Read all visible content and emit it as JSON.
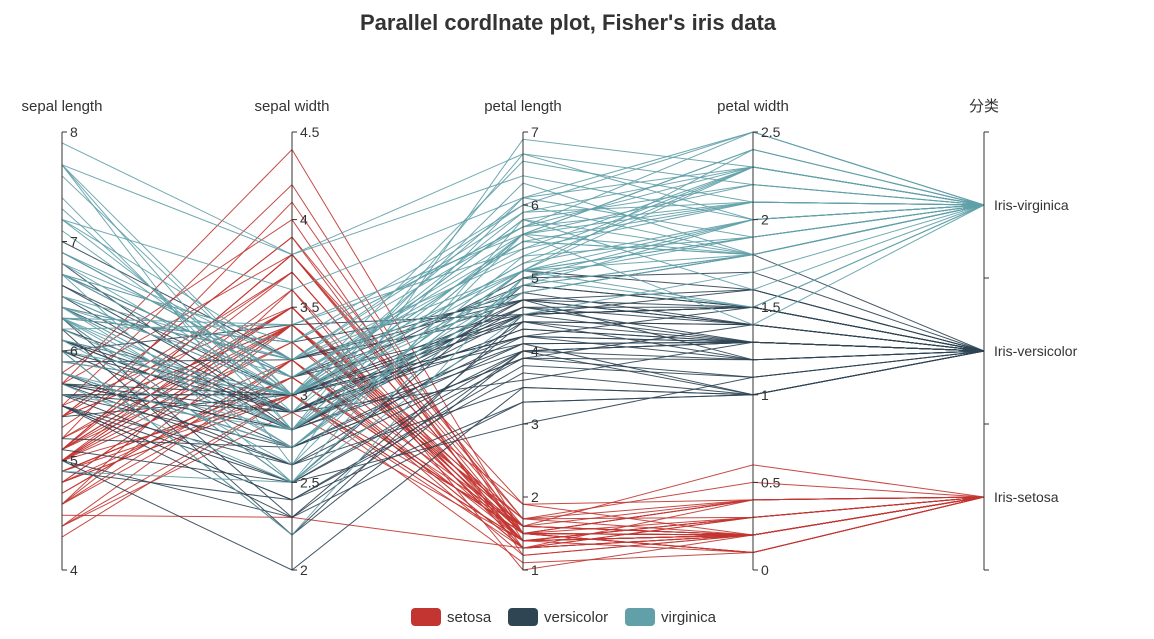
{
  "chart_data": {
    "type": "parallel",
    "title": "Parallel cordlnate plot, Fisher's iris data",
    "axes": [
      {
        "name": "sepal length",
        "type": "value",
        "min": 4,
        "max": 8,
        "ticks": [
          "4",
          "5",
          "6",
          "7",
          "8"
        ]
      },
      {
        "name": "sepal width",
        "type": "value",
        "min": 2,
        "max": 4.5,
        "ticks": [
          "2",
          "2.5",
          "3",
          "3.5",
          "4",
          "4.5"
        ]
      },
      {
        "name": "petal length",
        "type": "value",
        "min": 1,
        "max": 7,
        "ticks": [
          "1",
          "2",
          "3",
          "4",
          "5",
          "6",
          "7"
        ]
      },
      {
        "name": "petal width",
        "type": "value",
        "min": 0,
        "max": 2.5,
        "ticks": [
          "0",
          "0.5",
          "1",
          "1.5",
          "2",
          "2.5"
        ]
      },
      {
        "name": "分类",
        "type": "category",
        "categories": [
          "Iris-setosa",
          "Iris-versicolor",
          "Iris-virginica"
        ]
      }
    ],
    "legend": {
      "position": "bottom-center"
    },
    "colors": {
      "setosa": "#c23531",
      "versicolor": "#2f4554",
      "virginica": "#61a0a8"
    },
    "series": [
      {
        "name": "setosa",
        "category": "Iris-setosa",
        "data": [
          [
            5.1,
            3.5,
            1.4,
            0.2
          ],
          [
            4.9,
            3.0,
            1.4,
            0.2
          ],
          [
            4.7,
            3.2,
            1.3,
            0.2
          ],
          [
            4.6,
            3.1,
            1.5,
            0.2
          ],
          [
            5.0,
            3.6,
            1.4,
            0.2
          ],
          [
            5.4,
            3.9,
            1.7,
            0.4
          ],
          [
            4.6,
            3.4,
            1.4,
            0.3
          ],
          [
            5.0,
            3.4,
            1.5,
            0.2
          ],
          [
            4.4,
            2.9,
            1.4,
            0.2
          ],
          [
            4.9,
            3.1,
            1.5,
            0.1
          ],
          [
            5.4,
            3.7,
            1.5,
            0.2
          ],
          [
            4.8,
            3.4,
            1.6,
            0.2
          ],
          [
            4.8,
            3.0,
            1.4,
            0.1
          ],
          [
            4.3,
            3.0,
            1.1,
            0.1
          ],
          [
            5.8,
            4.0,
            1.2,
            0.2
          ],
          [
            5.7,
            4.4,
            1.5,
            0.4
          ],
          [
            5.4,
            3.9,
            1.3,
            0.4
          ],
          [
            5.1,
            3.5,
            1.4,
            0.3
          ],
          [
            5.7,
            3.8,
            1.7,
            0.3
          ],
          [
            5.1,
            3.8,
            1.5,
            0.3
          ],
          [
            5.4,
            3.4,
            1.7,
            0.2
          ],
          [
            5.1,
            3.7,
            1.5,
            0.4
          ],
          [
            4.6,
            3.6,
            1.0,
            0.2
          ],
          [
            5.1,
            3.3,
            1.7,
            0.5
          ],
          [
            4.8,
            3.4,
            1.9,
            0.2
          ],
          [
            5.0,
            3.0,
            1.6,
            0.2
          ],
          [
            5.0,
            3.4,
            1.6,
            0.4
          ],
          [
            5.2,
            3.5,
            1.5,
            0.2
          ],
          [
            5.2,
            3.4,
            1.4,
            0.2
          ],
          [
            4.7,
            3.2,
            1.6,
            0.2
          ],
          [
            4.8,
            3.1,
            1.6,
            0.2
          ],
          [
            5.4,
            3.4,
            1.5,
            0.4
          ],
          [
            5.2,
            4.1,
            1.5,
            0.1
          ],
          [
            5.5,
            4.2,
            1.4,
            0.2
          ],
          [
            4.9,
            3.1,
            1.5,
            0.1
          ],
          [
            5.0,
            3.2,
            1.2,
            0.2
          ],
          [
            5.5,
            3.5,
            1.3,
            0.2
          ],
          [
            4.9,
            3.1,
            1.5,
            0.1
          ],
          [
            4.4,
            3.0,
            1.3,
            0.2
          ],
          [
            5.1,
            3.4,
            1.5,
            0.2
          ],
          [
            5.0,
            3.5,
            1.3,
            0.3
          ],
          [
            4.5,
            2.3,
            1.3,
            0.3
          ],
          [
            4.4,
            3.2,
            1.3,
            0.2
          ],
          [
            5.0,
            3.5,
            1.6,
            0.6
          ],
          [
            5.1,
            3.8,
            1.9,
            0.4
          ],
          [
            4.8,
            3.0,
            1.4,
            0.3
          ],
          [
            5.1,
            3.8,
            1.6,
            0.2
          ],
          [
            4.6,
            3.2,
            1.4,
            0.2
          ],
          [
            5.3,
            3.7,
            1.5,
            0.2
          ],
          [
            5.0,
            3.3,
            1.4,
            0.2
          ]
        ]
      },
      {
        "name": "versicolor",
        "category": "Iris-versicolor",
        "data": [
          [
            7.0,
            3.2,
            4.7,
            1.4
          ],
          [
            6.4,
            3.2,
            4.5,
            1.5
          ],
          [
            6.9,
            3.1,
            4.9,
            1.5
          ],
          [
            5.5,
            2.3,
            4.0,
            1.3
          ],
          [
            6.5,
            2.8,
            4.6,
            1.5
          ],
          [
            5.7,
            2.8,
            4.5,
            1.3
          ],
          [
            6.3,
            3.3,
            4.7,
            1.6
          ],
          [
            4.9,
            2.4,
            3.3,
            1.0
          ],
          [
            6.6,
            2.9,
            4.6,
            1.3
          ],
          [
            5.2,
            2.7,
            3.9,
            1.4
          ],
          [
            5.0,
            2.0,
            3.5,
            1.0
          ],
          [
            5.9,
            3.0,
            4.2,
            1.5
          ],
          [
            6.0,
            2.2,
            4.0,
            1.0
          ],
          [
            6.1,
            2.9,
            4.7,
            1.4
          ],
          [
            5.6,
            2.9,
            3.6,
            1.3
          ],
          [
            6.7,
            3.1,
            4.4,
            1.4
          ],
          [
            5.6,
            3.0,
            4.5,
            1.5
          ],
          [
            5.8,
            2.7,
            4.1,
            1.0
          ],
          [
            6.2,
            2.2,
            4.5,
            1.5
          ],
          [
            5.6,
            2.5,
            3.9,
            1.1
          ],
          [
            5.9,
            3.2,
            4.8,
            1.8
          ],
          [
            6.1,
            2.8,
            4.0,
            1.3
          ],
          [
            6.3,
            2.5,
            4.9,
            1.5
          ],
          [
            6.1,
            2.8,
            4.7,
            1.2
          ],
          [
            6.4,
            2.9,
            4.3,
            1.3
          ],
          [
            6.6,
            3.0,
            4.4,
            1.4
          ],
          [
            6.8,
            2.8,
            4.8,
            1.4
          ],
          [
            6.7,
            3.0,
            5.0,
            1.7
          ],
          [
            6.0,
            2.9,
            4.5,
            1.5
          ],
          [
            5.7,
            2.6,
            3.5,
            1.0
          ],
          [
            5.5,
            2.4,
            3.8,
            1.1
          ],
          [
            5.5,
            2.4,
            3.7,
            1.0
          ],
          [
            5.8,
            2.7,
            3.9,
            1.2
          ],
          [
            6.0,
            2.7,
            5.1,
            1.6
          ],
          [
            5.4,
            3.0,
            4.5,
            1.5
          ],
          [
            6.0,
            3.4,
            4.5,
            1.6
          ],
          [
            6.7,
            3.1,
            4.7,
            1.5
          ],
          [
            6.3,
            2.3,
            4.4,
            1.3
          ],
          [
            5.6,
            3.0,
            4.1,
            1.3
          ],
          [
            5.5,
            2.5,
            4.0,
            1.3
          ],
          [
            5.5,
            2.6,
            4.4,
            1.2
          ],
          [
            6.1,
            3.0,
            4.6,
            1.4
          ],
          [
            5.8,
            2.6,
            4.0,
            1.2
          ],
          [
            5.0,
            2.3,
            3.3,
            1.0
          ],
          [
            5.6,
            2.7,
            4.2,
            1.3
          ],
          [
            5.7,
            3.0,
            4.2,
            1.2
          ],
          [
            5.7,
            2.9,
            4.2,
            1.3
          ],
          [
            6.2,
            2.9,
            4.3,
            1.3
          ],
          [
            5.1,
            2.5,
            3.0,
            1.1
          ],
          [
            5.7,
            2.8,
            4.1,
            1.3
          ]
        ]
      },
      {
        "name": "virginica",
        "category": "Iris-virginica",
        "data": [
          [
            6.3,
            3.3,
            6.0,
            2.5
          ],
          [
            5.8,
            2.7,
            5.1,
            1.9
          ],
          [
            7.1,
            3.0,
            5.9,
            2.1
          ],
          [
            6.3,
            2.9,
            5.6,
            1.8
          ],
          [
            6.5,
            3.0,
            5.8,
            2.2
          ],
          [
            7.6,
            3.0,
            6.6,
            2.1
          ],
          [
            4.9,
            2.5,
            4.5,
            1.7
          ],
          [
            7.3,
            2.9,
            6.3,
            1.8
          ],
          [
            6.7,
            2.5,
            5.8,
            1.8
          ],
          [
            7.2,
            3.6,
            6.1,
            2.5
          ],
          [
            6.5,
            3.2,
            5.1,
            2.0
          ],
          [
            6.4,
            2.7,
            5.3,
            1.9
          ],
          [
            6.8,
            3.0,
            5.5,
            2.1
          ],
          [
            5.7,
            2.5,
            5.0,
            2.0
          ],
          [
            5.8,
            2.8,
            5.1,
            2.4
          ],
          [
            6.4,
            3.2,
            5.3,
            2.3
          ],
          [
            6.5,
            3.0,
            5.5,
            1.8
          ],
          [
            7.7,
            3.8,
            6.7,
            2.2
          ],
          [
            7.7,
            2.6,
            6.9,
            2.3
          ],
          [
            6.0,
            2.2,
            5.0,
            1.5
          ],
          [
            6.9,
            3.2,
            5.7,
            2.3
          ],
          [
            5.6,
            2.8,
            4.9,
            2.0
          ],
          [
            7.7,
            2.8,
            6.7,
            2.0
          ],
          [
            6.3,
            2.7,
            4.9,
            1.8
          ],
          [
            6.7,
            3.3,
            5.7,
            2.1
          ],
          [
            7.2,
            3.2,
            6.0,
            1.8
          ],
          [
            6.2,
            2.8,
            4.8,
            1.8
          ],
          [
            6.1,
            3.0,
            4.9,
            1.8
          ],
          [
            6.4,
            2.8,
            5.6,
            2.1
          ],
          [
            7.2,
            3.0,
            5.8,
            1.6
          ],
          [
            7.4,
            2.8,
            6.1,
            1.9
          ],
          [
            7.9,
            3.8,
            6.4,
            2.0
          ],
          [
            6.4,
            2.8,
            5.6,
            2.2
          ],
          [
            6.3,
            2.8,
            5.1,
            1.5
          ],
          [
            6.1,
            2.6,
            5.6,
            1.4
          ],
          [
            7.7,
            3.0,
            6.1,
            2.3
          ],
          [
            6.3,
            3.4,
            5.6,
            2.4
          ],
          [
            6.4,
            3.1,
            5.5,
            1.8
          ],
          [
            6.0,
            3.0,
            4.8,
            1.8
          ],
          [
            6.9,
            3.1,
            5.4,
            2.1
          ],
          [
            6.7,
            3.1,
            5.6,
            2.4
          ],
          [
            6.9,
            3.1,
            5.1,
            2.3
          ],
          [
            5.8,
            2.7,
            5.1,
            1.9
          ],
          [
            6.8,
            3.2,
            5.9,
            2.3
          ],
          [
            6.7,
            3.3,
            5.7,
            2.5
          ],
          [
            6.7,
            3.0,
            5.2,
            2.3
          ],
          [
            6.3,
            2.5,
            5.0,
            1.9
          ],
          [
            6.5,
            3.0,
            5.2,
            2.0
          ],
          [
            6.2,
            3.4,
            5.4,
            2.3
          ],
          [
            5.9,
            3.0,
            5.1,
            1.8
          ]
        ]
      }
    ]
  }
}
